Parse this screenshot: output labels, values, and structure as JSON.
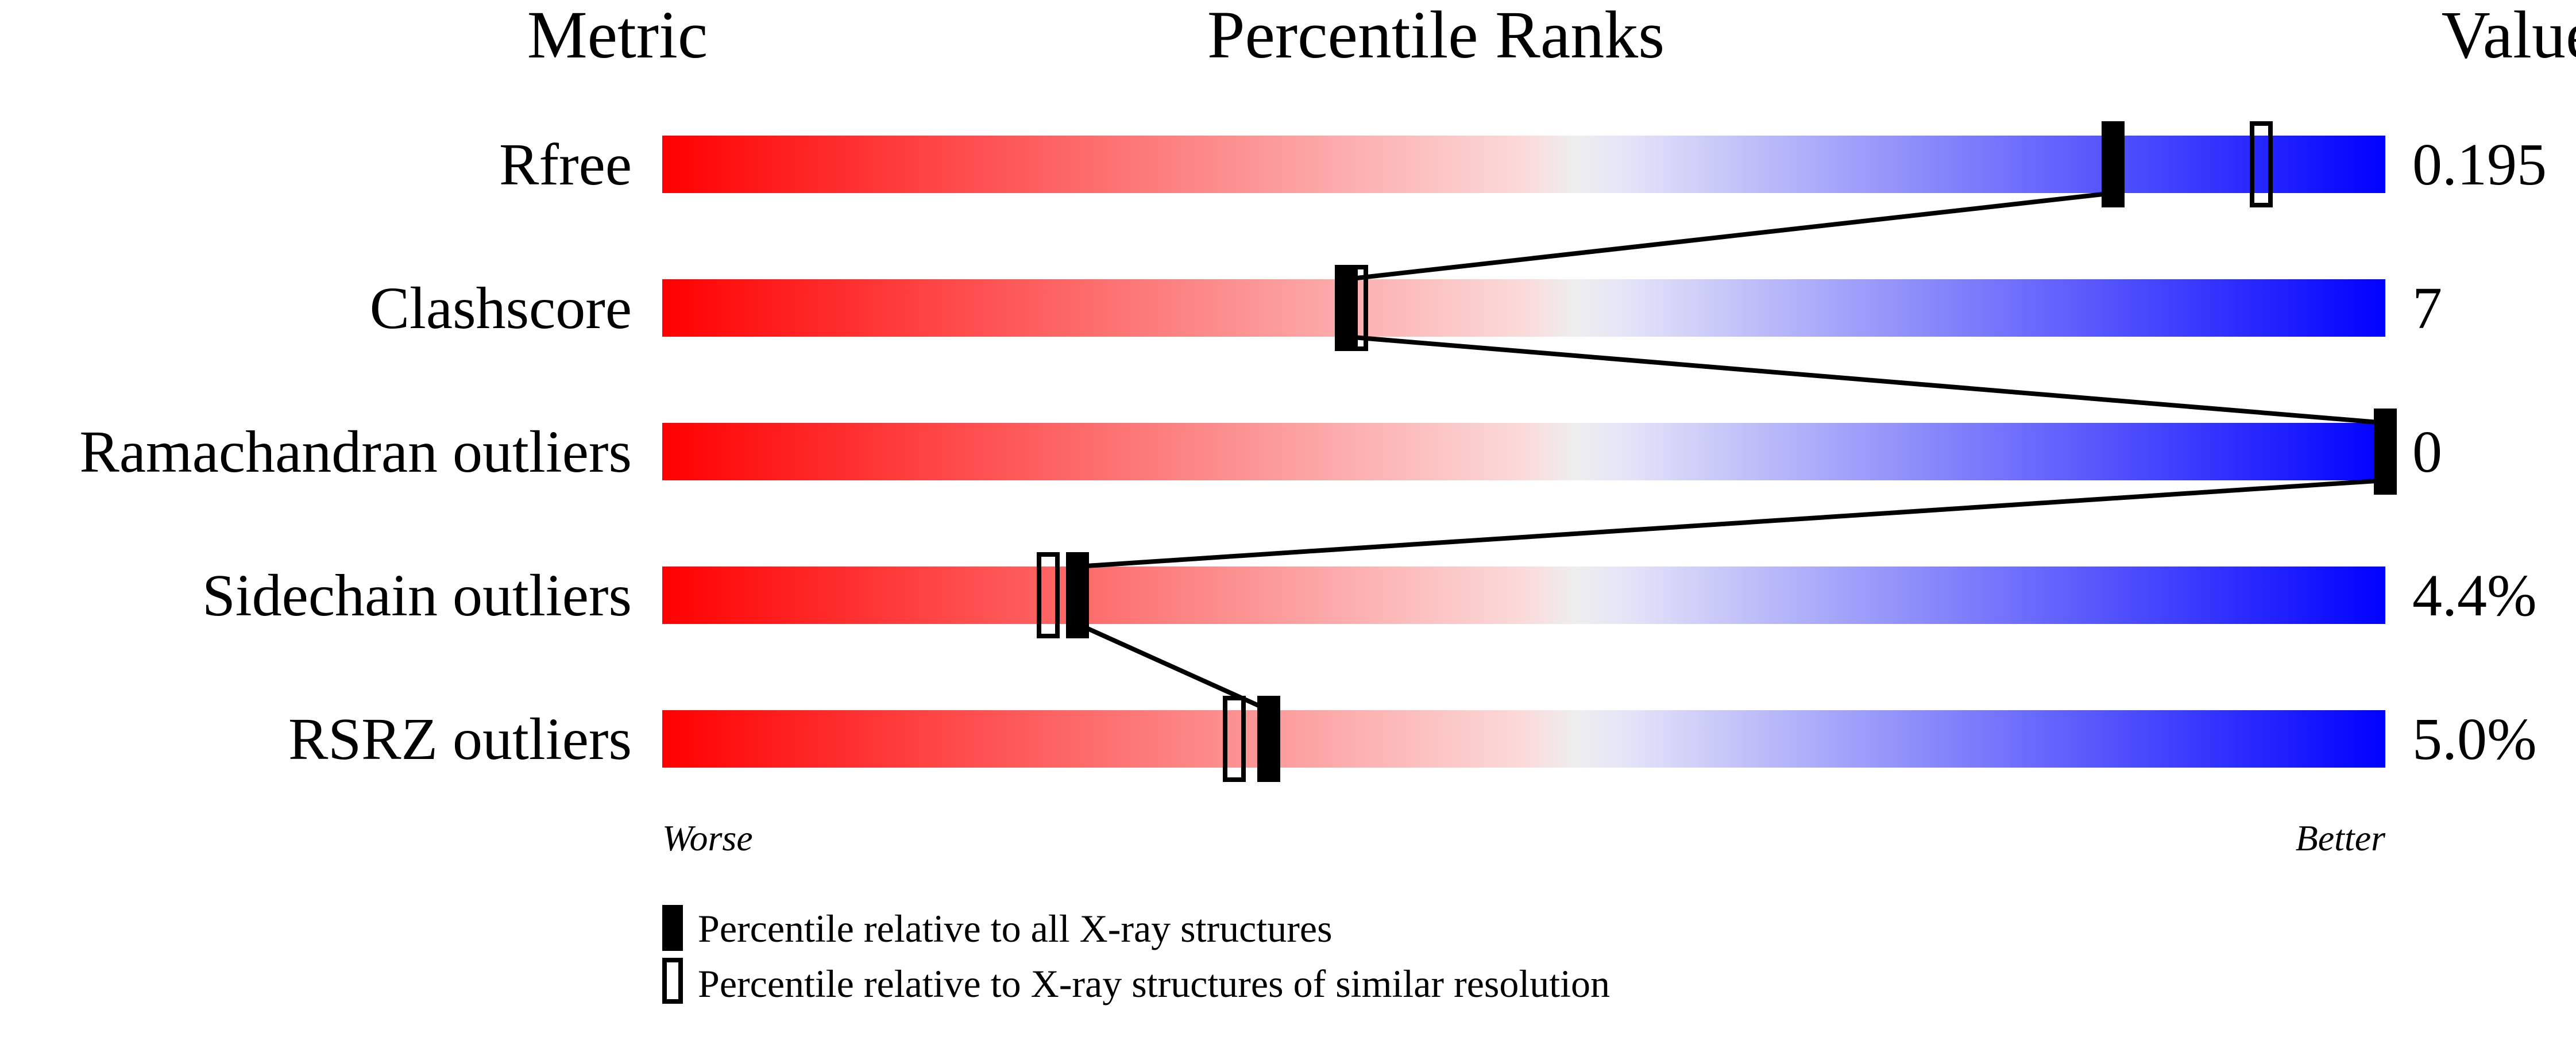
{
  "chart_data": {
    "type": "percentile-slider",
    "headers": {
      "metric": "Metric",
      "ranks": "Percentile Ranks",
      "value": "Value"
    },
    "x_range": [
      0,
      100
    ],
    "axis_left_label": "Worse",
    "axis_right_label": "Better",
    "gradient_colors": {
      "worse": "#ff0000",
      "middle": "#eeeeee",
      "better": "#0000ff"
    },
    "metrics": [
      {
        "name": "Rfree",
        "value": "0.195",
        "percentile_all": 84.2,
        "percentile_similar": 92.8
      },
      {
        "name": "Clashscore",
        "value": "7",
        "percentile_all": 39.7,
        "percentile_similar": 40.3
      },
      {
        "name": "Ramachandran outliers",
        "value": "0",
        "percentile_all": 100,
        "percentile_similar": 100
      },
      {
        "name": "Sidechain outliers",
        "value": "4.4%",
        "percentile_all": 24.1,
        "percentile_similar": 22.4
      },
      {
        "name": "RSRZ outliers",
        "value": "5.0%",
        "percentile_all": 35.2,
        "percentile_similar": 33.2
      }
    ],
    "legend": [
      {
        "marker": "filled",
        "label": "Percentile relative to all X-ray structures"
      },
      {
        "marker": "open",
        "label": "Percentile relative to X-ray structures of similar resolution"
      }
    ]
  }
}
